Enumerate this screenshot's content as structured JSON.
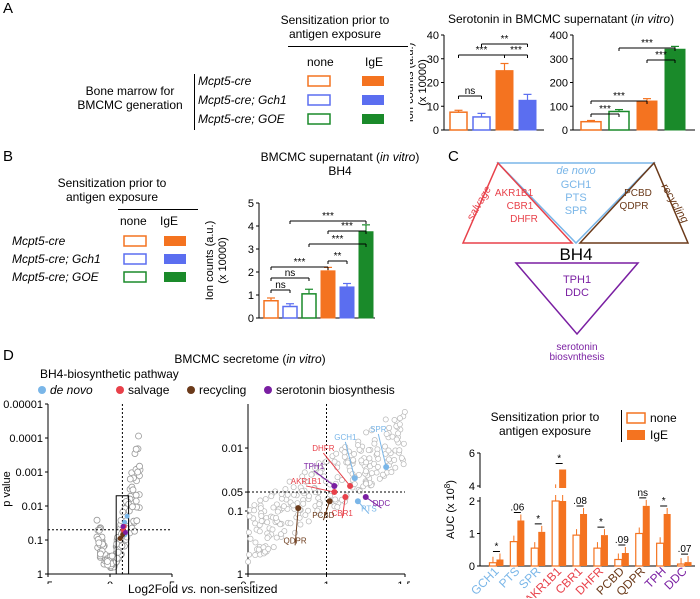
{
  "colors": {
    "orange": "#f47320",
    "blue": "#5b6ef0",
    "green": "#1a8a2a",
    "denovo": "#7ab6e8",
    "salvage": "#e8414a",
    "recycling": "#6b3a1a",
    "serotonin": "#7a1fa2",
    "gray": "#9a9a9a"
  },
  "panelA": {
    "letter": "A",
    "sens_title_line1": "Sensitization prior to",
    "sens_title_line2": "antigen exposure",
    "col_none": "none",
    "col_ige": "IgE",
    "bm_line1": "Bone marrow for",
    "bm_line2": "BMCMC generation",
    "rows": [
      "Mcpt5-cre",
      "Mcpt5-cre; Gch1",
      "Mcpt5-cre; GOE"
    ],
    "chart_title_pre": "Serotonin in BMCMC supernatant (",
    "chart_title_it": "in vitro",
    "chart_title_post": ")",
    "ylabel_line1": "Ion counts (a.u.)",
    "ylabel_line2": "(x 10000)"
  },
  "panelB": {
    "letter": "B",
    "sens_title_line1": "Sensitization prior to",
    "sens_title_line2": "antigen exposure",
    "col_none": "none",
    "col_ige": "IgE",
    "rows": [
      "Mcpt5-cre",
      "Mcpt5-cre; Gch1",
      "Mcpt5-cre; GOE"
    ],
    "chart_title_pre": "BMCMC supernatant (",
    "chart_title_it": "in vitro",
    "chart_title_post": ")",
    "chart_subtitle": "BH4",
    "ylabel_line1": "Ion counts (a.u.)",
    "ylabel_line2": "(x 10000)"
  },
  "panelC": {
    "letter": "C",
    "center": "BH4",
    "denovo_title": "de novo",
    "denovo_genes": [
      "GCH1",
      "PTS",
      "SPR"
    ],
    "salvage_title": "salvage",
    "salvage_genes": [
      "AKR1B1",
      "CBR1",
      "DHFR"
    ],
    "recycling_title": "recycling",
    "recycling_genes": [
      "PCBD",
      "QDPR"
    ],
    "serotonin_genes": [
      "TPH1",
      "DDC"
    ],
    "serotonin_line1": "serotonin",
    "serotonin_line2": "biosynthesis"
  },
  "panelD": {
    "letter": "D",
    "title_pre": "BMCMC secretome (",
    "title_it": "in vitro",
    "title_post": ")",
    "pathway_title": "BH4-biosynthetic pathway",
    "legend": [
      "de novo",
      "salvage",
      "recycling",
      "serotonin biosynthesis"
    ],
    "ylabel": "p value",
    "xlabel_pre": "Log2Fold ",
    "xlabel_it": "vs.",
    "xlabel_post": " non-sensitized",
    "sens_title_line1": "Sensitization prior to",
    "sens_title_line2": "antigen exposure",
    "leg_none": "none",
    "leg_ige": "IgE",
    "auc_ylabel": "AUC (x 10",
    "auc_ylabel_exp": "8",
    "auc_ylabel_post": ")"
  },
  "chart_data": [
    {
      "id": "A-left",
      "type": "bar",
      "categories": [
        "Mcpt5-cre none",
        "Mcpt5-cre; Gch1 none",
        "Mcpt5-cre IgE",
        "Mcpt5-cre; Gch1 IgE"
      ],
      "values": [
        7.5,
        5.5,
        25,
        12.5
      ],
      "errors": [
        0.8,
        1.5,
        3,
        2.5
      ],
      "styles": [
        "open-orange",
        "open-blue",
        "fill-orange",
        "fill-blue"
      ],
      "ylim": [
        0,
        40
      ],
      "yticks": [
        0,
        10,
        20,
        30,
        40
      ],
      "significance": [
        {
          "from": 0,
          "to": 1,
          "label": "ns"
        },
        {
          "from": 0,
          "to": 2,
          "label": "***"
        },
        {
          "from": 1,
          "to": 3,
          "label": "**"
        },
        {
          "from": 2,
          "to": 3,
          "label": "***"
        }
      ]
    },
    {
      "id": "A-right",
      "type": "bar",
      "categories": [
        "Mcpt5-cre none",
        "Mcpt5-cre; GOE none",
        "Mcpt5-cre IgE",
        "Mcpt5-cre; GOE IgE"
      ],
      "values": [
        35,
        78,
        122,
        340
      ],
      "errors": [
        5,
        8,
        10,
        12
      ],
      "styles": [
        "open-orange",
        "open-green",
        "fill-orange",
        "fill-green"
      ],
      "ylim": [
        0,
        400
      ],
      "yticks": [
        0,
        100,
        200,
        300,
        400
      ],
      "significance": [
        {
          "from": 0,
          "to": 1,
          "label": "***"
        },
        {
          "from": 0,
          "to": 2,
          "label": "***"
        },
        {
          "from": 2,
          "to": 3,
          "label": "***"
        },
        {
          "from": 1,
          "to": 3,
          "label": "***"
        }
      ]
    },
    {
      "id": "B",
      "type": "bar",
      "categories": [
        "Mcpt5-cre none",
        "Mcpt5-cre; Gch1 none",
        "Mcpt5-cre; GOE none",
        "Mcpt5-cre IgE",
        "Mcpt5-cre; Gch1 IgE",
        "Mcpt5-cre; GOE IgE"
      ],
      "values": [
        0.75,
        0.5,
        1.05,
        2.05,
        1.35,
        3.75
      ],
      "errors": [
        0.12,
        0.12,
        0.2,
        0.15,
        0.15,
        0.3
      ],
      "styles": [
        "open-orange",
        "open-blue",
        "open-green",
        "fill-orange",
        "fill-blue",
        "fill-green"
      ],
      "ylim": [
        0,
        5
      ],
      "yticks": [
        0,
        1,
        2,
        3,
        4,
        5
      ],
      "significance": [
        {
          "from": 0,
          "to": 1,
          "label": "ns"
        },
        {
          "from": 0,
          "to": 2,
          "label": "ns"
        },
        {
          "from": 0,
          "to": 3,
          "label": "***"
        },
        {
          "from": 3,
          "to": 4,
          "label": "**"
        },
        {
          "from": 2,
          "to": 5,
          "label": "***"
        },
        {
          "from": 3,
          "to": 5,
          "label": "***"
        },
        {
          "from": 1,
          "to": 5,
          "label": "***"
        }
      ]
    },
    {
      "id": "D-volcano-full",
      "type": "scatter",
      "xlim": [
        -5,
        5
      ],
      "xticks": [
        -5,
        0,
        5
      ],
      "yticks": [
        "0.00001",
        "0.0001",
        "0.001",
        "0.01",
        "0.1",
        "1"
      ],
      "ylim_log": [
        1,
        1e-05
      ]
    },
    {
      "id": "D-volcano-zoom",
      "type": "scatter",
      "xlim": [
        0.5,
        1.5
      ],
      "xticks": [
        0.5,
        1,
        1.5
      ],
      "yticks": [
        "0.01",
        "0.05",
        "0.1",
        "1"
      ],
      "points": [
        {
          "label": "GCH1",
          "x": 1.18,
          "p": 0.03,
          "group": "denovo"
        },
        {
          "label": "SPR",
          "x": 1.38,
          "p": 0.02,
          "group": "denovo"
        },
        {
          "label": "PTS",
          "x": 1.2,
          "p": 0.07,
          "group": "denovo"
        },
        {
          "label": "DHFR",
          "x": 1.15,
          "p": 0.04,
          "group": "salvage"
        },
        {
          "label": "AKR1B1",
          "x": 1.05,
          "p": 0.05,
          "group": "salvage"
        },
        {
          "label": "CBR1",
          "x": 1.12,
          "p": 0.06,
          "group": "salvage"
        },
        {
          "label": "PCBD",
          "x": 1.02,
          "p": 0.07,
          "group": "recycling"
        },
        {
          "label": "QDPR",
          "x": 0.82,
          "p": 0.09,
          "group": "recycling"
        },
        {
          "label": "TPH1",
          "x": 1.05,
          "p": 0.04,
          "group": "serotonin"
        },
        {
          "label": "DDC",
          "x": 1.25,
          "p": 0.06,
          "group": "serotonin"
        }
      ]
    },
    {
      "id": "D-auc",
      "type": "bar",
      "categories": [
        "GCH1",
        "PTS",
        "SPR",
        "AKR1B1",
        "CBR1",
        "DHFR",
        "PCBD",
        "QDPR",
        "TPH",
        "DDC"
      ],
      "category_groups": [
        "denovo",
        "denovo",
        "denovo",
        "salvage",
        "salvage",
        "salvage",
        "recycling",
        "recycling",
        "serotonin",
        "serotonin"
      ],
      "series": [
        {
          "name": "none",
          "values": [
            0.1,
            0.75,
            0.55,
            2.6,
            0.95,
            0.55,
            0.2,
            1.0,
            0.7,
            0.06
          ]
        },
        {
          "name": "IgE",
          "values": [
            0.2,
            1.4,
            1.05,
            5.0,
            1.6,
            0.95,
            0.4,
            1.85,
            1.6,
            0.12
          ]
        }
      ],
      "significance": [
        "*",
        ".06",
        "*",
        "*",
        ".08",
        "*",
        ".09",
        "ns",
        "*",
        ".07"
      ],
      "yticks": [
        0,
        1,
        2,
        4,
        6
      ]
    }
  ]
}
